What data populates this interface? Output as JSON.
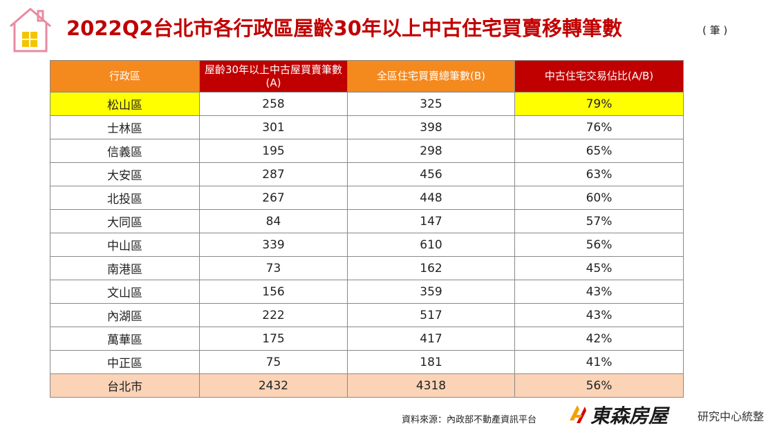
{
  "title": "2022Q2台北市各行政區屋齡30年以上中古住宅買賣移轉筆數",
  "unit": "( 筆 )",
  "colors": {
    "title": "#c00000",
    "header_orange": "#f4891e",
    "header_red": "#c00000",
    "highlight": "#ffff00",
    "total_row": "#fbd3b7"
  },
  "icons": {
    "logo": "house-icon",
    "brand": "brand-mark-icon"
  },
  "chart_data": {
    "type": "table",
    "columns": [
      "行政區",
      "屋齡30年以上中古屋買賣筆數(A)",
      "全區住宅買賣總筆數(B)",
      "中古住宅交易佔比(A/B)"
    ],
    "rows": [
      [
        "松山區",
        "258",
        "325",
        "79%"
      ],
      [
        "士林區",
        "301",
        "398",
        "76%"
      ],
      [
        "信義區",
        "195",
        "298",
        "65%"
      ],
      [
        "大安區",
        "287",
        "456",
        "63%"
      ],
      [
        "北投區",
        "267",
        "448",
        "60%"
      ],
      [
        "大同區",
        "84",
        "147",
        "57%"
      ],
      [
        "中山區",
        "339",
        "610",
        "56%"
      ],
      [
        "南港區",
        "73",
        "162",
        "45%"
      ],
      [
        "文山區",
        "156",
        "359",
        "43%"
      ],
      [
        "內湖區",
        "222",
        "517",
        "43%"
      ],
      [
        "萬華區",
        "175",
        "417",
        "42%"
      ],
      [
        "中正區",
        "75",
        "181",
        "41%"
      ]
    ],
    "total": [
      "台北市",
      "2432",
      "4318",
      "56%"
    ],
    "highlighted_row": "松山區"
  },
  "footer": {
    "source": "資料來源：內政部不動產資訊平台",
    "brand": "東森房屋",
    "brand_sub": "研究中心統整"
  }
}
